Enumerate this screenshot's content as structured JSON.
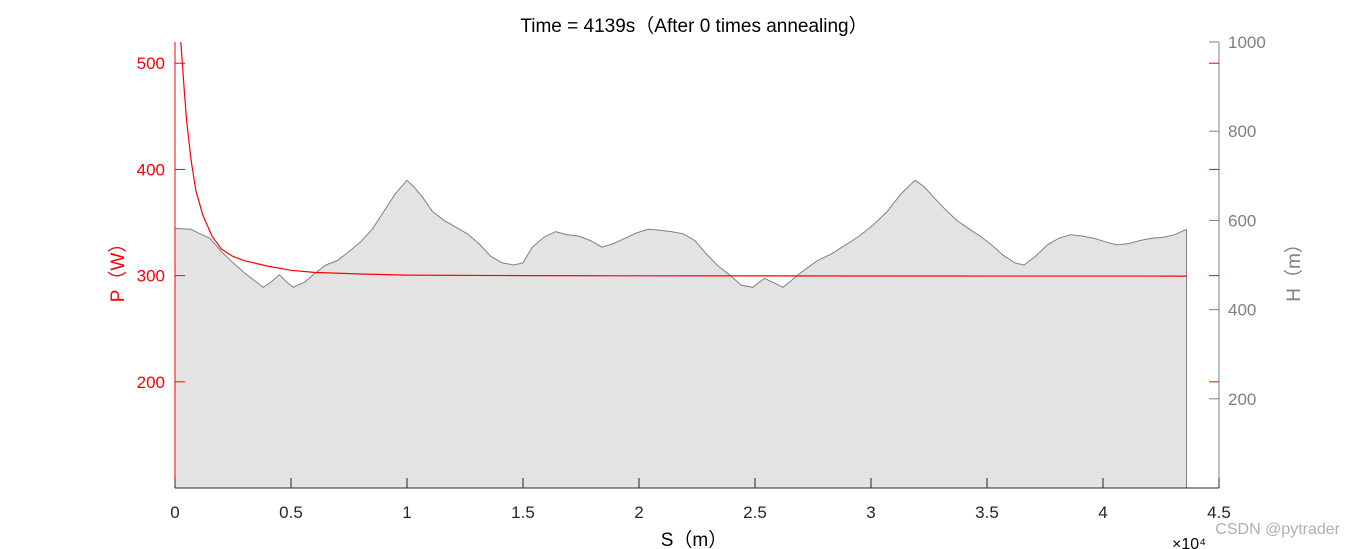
{
  "chart_data": {
    "type": "area",
    "title": "Time = 4139s（After 0 times annealing）",
    "xlabel": "S（m）",
    "x_exponent": "×10⁴",
    "ylabel_left": "P（W）",
    "ylabel_right": "H（m）",
    "xlim": [
      0,
      45000
    ],
    "ylim_left": [
      100,
      520
    ],
    "ylim_right": [
      0,
      1000
    ],
    "xticks": [
      0,
      5000,
      10000,
      15000,
      20000,
      25000,
      30000,
      35000,
      40000,
      45000
    ],
    "xtick_labels": [
      "0",
      "0.5",
      "1",
      "1.5",
      "2",
      "2.5",
      "3",
      "3.5",
      "4",
      "4.5"
    ],
    "yticks_left": [
      200,
      300,
      400,
      500
    ],
    "ytick_labels_left": [
      "200",
      "300",
      "400",
      "500"
    ],
    "yticks_right": [
      200,
      400,
      600,
      800,
      1000
    ],
    "ytick_labels_right": [
      "200",
      "400",
      "600",
      "800",
      "1000"
    ],
    "grid": false,
    "series": [
      {
        "axis": "right",
        "style": "filled-area",
        "color": "#808080",
        "fill": "#e3e3e3",
        "x": [
          0,
          700,
          1000,
          1500,
          2000,
          2500,
          3000,
          3500,
          3800,
          4100,
          4500,
          4800,
          5100,
          5600,
          6000,
          6500,
          7000,
          7500,
          8000,
          8500,
          9000,
          9500,
          10000,
          10300,
          10700,
          11100,
          11600,
          12100,
          12600,
          13100,
          13600,
          14100,
          14600,
          15000,
          15400,
          15900,
          16400,
          16900,
          17400,
          17900,
          18400,
          18900,
          19400,
          19900,
          20400,
          20900,
          21400,
          21900,
          22400,
          22900,
          23400,
          23900,
          24400,
          24900,
          25400,
          25900,
          26200,
          26500,
          26900,
          27300,
          27700,
          28300,
          28900,
          29500,
          30100,
          30700,
          31300,
          31900,
          32300,
          32700,
          33200,
          33700,
          34200,
          34700,
          35200,
          35700,
          36200,
          36600,
          37100,
          37600,
          38100,
          38600,
          39100,
          39600,
          40100,
          40600,
          41100,
          41600,
          42100,
          42600,
          43100,
          43600
        ],
        "values": [
          582,
          580,
          572,
          560,
          530,
          505,
          482,
          462,
          450,
          460,
          478,
          462,
          450,
          462,
          480,
          500,
          510,
          530,
          552,
          580,
          620,
          660,
          690,
          675,
          650,
          620,
          600,
          585,
          570,
          548,
          520,
          505,
          500,
          505,
          540,
          562,
          575,
          568,
          565,
          555,
          540,
          548,
          560,
          572,
          580,
          578,
          575,
          570,
          555,
          525,
          498,
          478,
          455,
          450,
          470,
          458,
          450,
          462,
          480,
          495,
          510,
          525,
          545,
          565,
          590,
          620,
          660,
          690,
          675,
          652,
          625,
          600,
          582,
          565,
          545,
          522,
          505,
          500,
          520,
          545,
          560,
          568,
          565,
          560,
          552,
          545,
          548,
          555,
          560,
          562,
          568,
          580
        ]
      },
      {
        "axis": "left",
        "style": "line",
        "color": "#ff0000",
        "x": [
          250,
          300,
          400,
          500,
          700,
          900,
          1200,
          1600,
          2000,
          2500,
          3000,
          4000,
          5000,
          6000,
          8000,
          10000,
          15000,
          20000,
          30000,
          43600
        ],
        "values": [
          520,
          505,
          474,
          446,
          408,
          380,
          357,
          337,
          325,
          318,
          314,
          309,
          305,
          303,
          301.5,
          300.5,
          300,
          299.8,
          299.6,
          299.5
        ]
      }
    ]
  },
  "watermark": "CSDN @pytrader"
}
